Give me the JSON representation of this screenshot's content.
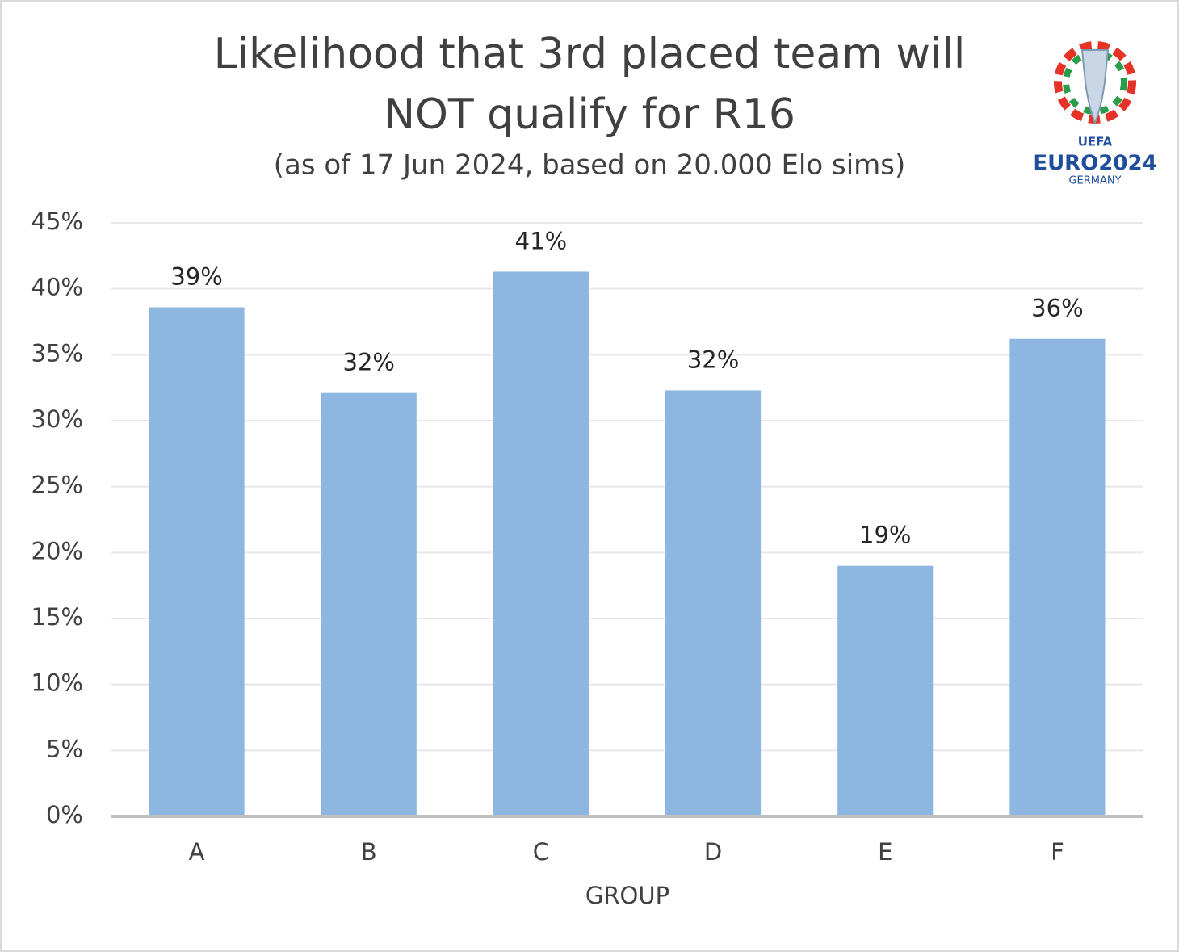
{
  "chart_data": {
    "type": "bar",
    "title": [
      "Likelihood that 3rd placed team will",
      "NOT qualify for R16"
    ],
    "subtitle": "(as of 17 Jun 2024, based on 20.000 Elo sims)",
    "logo": {
      "org": "UEFA",
      "name": "EURO2024",
      "country": "GERMANY"
    },
    "x_label": "GROUP",
    "categories": [
      "A",
      "B",
      "C",
      "D",
      "E",
      "F"
    ],
    "values": [
      38.6,
      32.1,
      41.3,
      32.3,
      19.0,
      36.2
    ],
    "value_labels": [
      "39%",
      "32%",
      "41%",
      "32%",
      "19%",
      "36%"
    ],
    "color": "#8db6e0",
    "ylim": [
      0,
      45
    ],
    "yticks": [
      {
        "value": 0,
        "label": "0%"
      },
      {
        "value": 5,
        "label": "5%"
      },
      {
        "value": 10,
        "label": "10%"
      },
      {
        "value": 15,
        "label": "15%"
      },
      {
        "value": 20,
        "label": "20%"
      },
      {
        "value": 25,
        "label": "25%"
      },
      {
        "value": 30,
        "label": "30%"
      },
      {
        "value": 35,
        "label": "35%"
      },
      {
        "value": 40,
        "label": "40%"
      },
      {
        "value": 45,
        "label": "45%"
      }
    ],
    "grid": true
  }
}
